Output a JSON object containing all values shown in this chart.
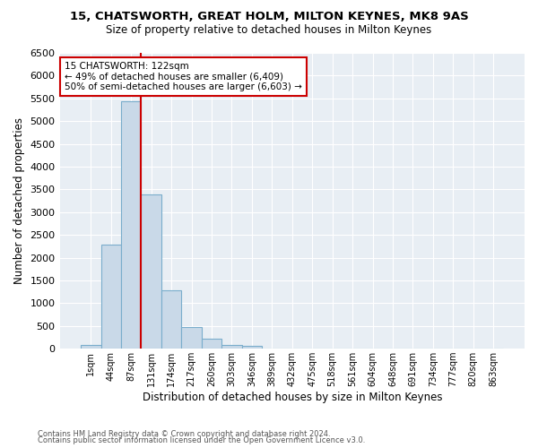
{
  "title1": "15, CHATSWORTH, GREAT HOLM, MILTON KEYNES, MK8 9AS",
  "title2": "Size of property relative to detached houses in Milton Keynes",
  "xlabel": "Distribution of detached houses by size in Milton Keynes",
  "ylabel": "Number of detached properties",
  "footnote1": "Contains HM Land Registry data © Crown copyright and database right 2024.",
  "footnote2": "Contains public sector information licensed under the Open Government Licence v3.0.",
  "bin_labels": [
    "1sqm",
    "44sqm",
    "87sqm",
    "131sqm",
    "174sqm",
    "217sqm",
    "260sqm",
    "303sqm",
    "346sqm",
    "389sqm",
    "432sqm",
    "475sqm",
    "518sqm",
    "561sqm",
    "604sqm",
    "648sqm",
    "691sqm",
    "734sqm",
    "777sqm",
    "820sqm",
    "863sqm"
  ],
  "bar_values": [
    75,
    2280,
    5430,
    3380,
    1290,
    470,
    215,
    90,
    55,
    0,
    0,
    0,
    0,
    0,
    0,
    0,
    0,
    0,
    0,
    0,
    0
  ],
  "bar_color": "#c9d9e8",
  "bar_edge_color": "#7aadcc",
  "vline_x_index": 2,
  "vline_color": "#cc0000",
  "annotation_text": "15 CHATSWORTH: 122sqm\n← 49% of detached houses are smaller (6,409)\n50% of semi-detached houses are larger (6,603) →",
  "annotation_box_color": "#ffffff",
  "annotation_box_edge": "#cc0000",
  "ylim": [
    0,
    6500
  ],
  "yticks": [
    0,
    500,
    1000,
    1500,
    2000,
    2500,
    3000,
    3500,
    4000,
    4500,
    5000,
    5500,
    6000,
    6500
  ],
  "bg_color": "#e8eef4",
  "fig_bg_color": "#ffffff"
}
